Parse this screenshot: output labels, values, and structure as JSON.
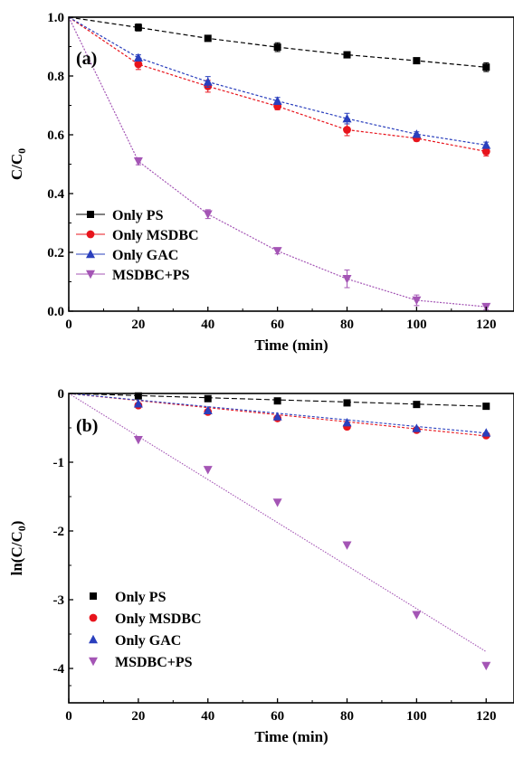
{
  "legend_entries": [
    "Only PS",
    "Only MSDBC",
    "Only GAC",
    "MSDBC+PS"
  ],
  "series_colors": {
    "Only PS": "#000000",
    "Only MSDBC": "#e8141c",
    "Only GAC": "#2a3fbd",
    "MSDBC+PS": "#a455b5"
  },
  "marker_shapes": {
    "Only PS": "square",
    "Only MSDBC": "circle",
    "Only GAC": "triangle-up",
    "MSDBC+PS": "triangle-down"
  },
  "chart_data": [
    {
      "panel": "(a)",
      "type": "line",
      "xlabel": "Time (min)",
      "ylabel_main": "C/C",
      "ylabel_sub": "0",
      "xlim": [
        0,
        128
      ],
      "ylim": [
        0,
        1.0
      ],
      "xticks": [
        0,
        20,
        40,
        60,
        80,
        100,
        120
      ],
      "xtick_labels": [
        "0",
        "20",
        "40",
        "60",
        "80",
        "100",
        "120"
      ],
      "yticks": [
        0.0,
        0.2,
        0.4,
        0.6,
        0.8,
        1.0
      ],
      "ytick_labels": [
        "0.0",
        "0.2",
        "0.4",
        "0.6",
        "0.8",
        "1.0"
      ],
      "legend_position": "bottom-left",
      "x": [
        0,
        20,
        40,
        60,
        80,
        100,
        120
      ],
      "series": [
        {
          "name": "Only PS",
          "values": [
            1.0,
            0.965,
            0.928,
            0.898,
            0.872,
            0.852,
            0.83
          ],
          "errors": [
            0,
            0.012,
            0.008,
            0.015,
            0.01,
            0.008,
            0.015
          ]
        },
        {
          "name": "Only MSDBC",
          "values": [
            1.0,
            0.84,
            0.765,
            0.697,
            0.617,
            0.588,
            0.543
          ],
          "errors": [
            0,
            0.018,
            0.02,
            0.012,
            0.02,
            0.01,
            0.015
          ]
        },
        {
          "name": "Only GAC",
          "values": [
            1.0,
            0.862,
            0.78,
            0.715,
            0.655,
            0.602,
            0.565
          ],
          "errors": [
            0,
            0.01,
            0.018,
            0.012,
            0.018,
            0.008,
            0.01
          ]
        },
        {
          "name": "MSDBC+PS",
          "values": [
            1.0,
            0.51,
            0.33,
            0.205,
            0.11,
            0.037,
            0.015
          ],
          "errors": [
            0,
            0.012,
            0.015,
            0.01,
            0.03,
            0.018,
            0.01
          ]
        }
      ]
    },
    {
      "panel": "(b)",
      "type": "scatter",
      "xlabel": "Time (min)",
      "ylabel_main": "ln(C/C",
      "ylabel_sub": "0",
      "ylabel_end": ")",
      "xlim": [
        0,
        128
      ],
      "ylim": [
        -4.5,
        0
      ],
      "xticks": [
        0,
        20,
        40,
        60,
        80,
        100,
        120
      ],
      "xtick_labels": [
        "0",
        "20",
        "40",
        "60",
        "80",
        "100",
        "120"
      ],
      "yticks": [
        0,
        -1,
        -2,
        -3,
        -4
      ],
      "ytick_labels": [
        "0",
        "-1",
        "-2",
        "-3",
        "-4"
      ],
      "legend_position": "bottom-left",
      "x": [
        0,
        20,
        40,
        60,
        80,
        100,
        120
      ],
      "series": [
        {
          "name": "Only PS",
          "values": [
            0,
            -0.036,
            -0.075,
            -0.108,
            -0.137,
            -0.16,
            -0.186
          ],
          "fit_slope": -0.00155
        },
        {
          "name": "Only MSDBC",
          "values": [
            0,
            -0.174,
            -0.268,
            -0.361,
            -0.483,
            -0.531,
            -0.61
          ],
          "fit_slope": -0.00515
        },
        {
          "name": "Only GAC",
          "values": [
            0,
            -0.149,
            -0.248,
            -0.336,
            -0.423,
            -0.508,
            -0.571
          ],
          "fit_slope": -0.0048
        },
        {
          "name": "MSDBC+PS",
          "values": [
            0,
            -0.673,
            -1.109,
            -1.585,
            -2.207,
            -3.219,
            -3.96
          ],
          "fit_slope": -0.0313
        }
      ]
    }
  ]
}
